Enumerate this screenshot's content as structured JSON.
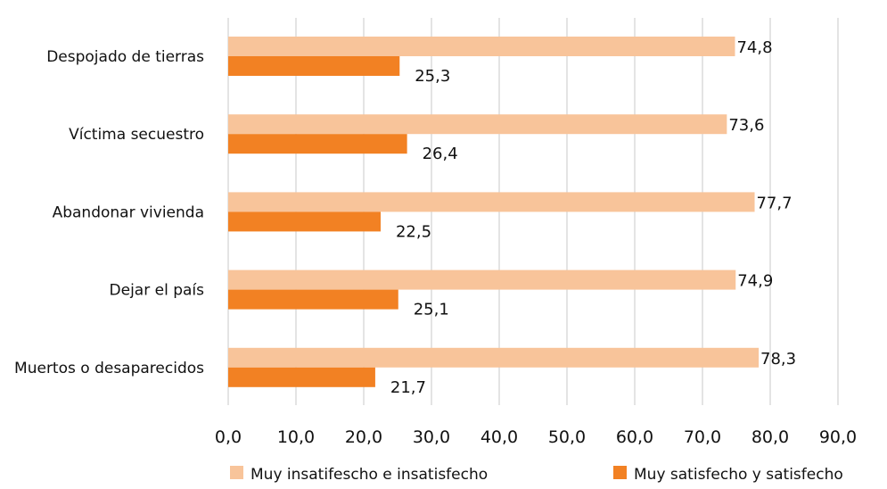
{
  "chart_data": {
    "type": "bar",
    "orientation": "horizontal",
    "title": "",
    "xlabel": "",
    "ylabel": "",
    "xlim": [
      0,
      90
    ],
    "x_ticks": [
      "0,0",
      "10,0",
      "20,0",
      "30,0",
      "40,0",
      "50,0",
      "60,0",
      "70,0",
      "80,0",
      "90,0"
    ],
    "grid": "vertical",
    "legend_position": "bottom",
    "categories": [
      "Despojado de tierras",
      "Víctima secuestro",
      "Abandonar vivienda",
      "Dejar el país",
      "Muertos o desaparecidos"
    ],
    "series": [
      {
        "name": "Muy insatifescho e insatisfecho",
        "color": "#f8c49a",
        "values": [
          74.8,
          73.6,
          77.7,
          74.9,
          78.3
        ],
        "labels": [
          "74,8",
          "73,6",
          "77,7",
          "74,9",
          "78,3"
        ]
      },
      {
        "name": "Muy satisfecho y satisfecho",
        "color": "#f28123",
        "values": [
          25.3,
          26.4,
          22.5,
          25.1,
          21.7
        ],
        "labels": [
          "25,3",
          "26,4",
          "22,5",
          "25,1",
          "21,7"
        ]
      }
    ]
  }
}
